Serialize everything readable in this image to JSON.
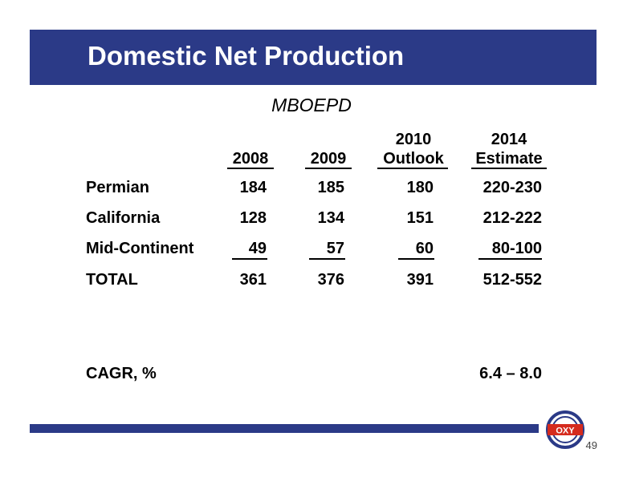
{
  "slide": {
    "title": "Domestic Net Production",
    "unit": "MBOEPD",
    "page_number": "49",
    "logo_text": "OXY"
  },
  "table": {
    "columns": [
      {
        "line1": "",
        "line2": "2008"
      },
      {
        "line1": "",
        "line2": "2009"
      },
      {
        "line1": "2010",
        "line2": "Outlook"
      },
      {
        "line1": "2014",
        "line2": "Estimate"
      }
    ],
    "rows": [
      {
        "label": "Permian",
        "values": [
          "184",
          "185",
          "180",
          "220-230"
        ]
      },
      {
        "label": "California",
        "values": [
          "128",
          "134",
          "151",
          "212-222"
        ]
      },
      {
        "label": "Mid-Continent",
        "values": [
          "49",
          "57",
          "60",
          "80-100"
        ]
      },
      {
        "label": "TOTAL",
        "values": [
          "361",
          "376",
          "391",
          "512-552"
        ]
      }
    ],
    "cagr": {
      "label": "CAGR, %",
      "value": "6.4 – 8.0"
    }
  },
  "colors": {
    "brand_blue": "#2b3a87",
    "logo_red": "#d52b1e"
  }
}
